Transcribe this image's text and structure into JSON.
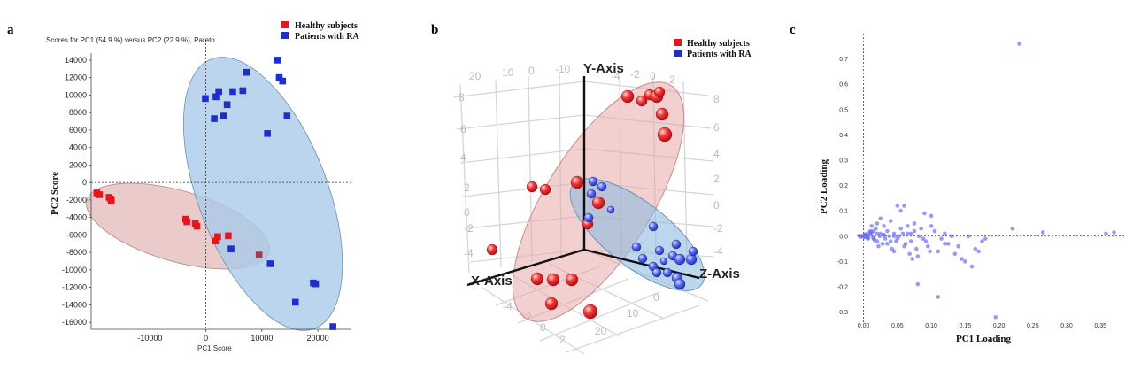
{
  "colors": {
    "healthy": "#e8161c",
    "ra": "#1d2fc8",
    "loading": "#6f6ff0",
    "healthy_ellipse": "#e4b8b8",
    "ra_ellipse": "#a9cbe8"
  },
  "chart_data": [
    {
      "panel": "a",
      "type": "scatter",
      "title": "Scores for PC1 (54.9 %) versus PC2 (22.9 %), Pareto",
      "xlabel": "PC1 Score",
      "ylabel": "PC2 Score",
      "xlim": [
        -20500,
        26000
      ],
      "ylim": [
        -16800,
        14800
      ],
      "xticks": [
        -10000,
        0,
        10000,
        20000
      ],
      "yticks": [
        -16000,
        -14000,
        -12000,
        -10000,
        -8000,
        -6000,
        -4000,
        -2000,
        0,
        2000,
        4000,
        6000,
        8000,
        10000,
        12000,
        14000
      ],
      "legend": [
        "Healthy subjects",
        "Patients with RA"
      ],
      "legend_position": "top-right",
      "series": [
        {
          "name": "Healthy subjects",
          "marker": "square",
          "color": "#e8161c",
          "x": [
            -19500,
            -19000,
            -17300,
            -17000,
            -16900,
            -3600,
            -3400,
            -1900,
            -1600,
            1700,
            2100,
            4000
          ],
          "y": [
            -1200,
            -1400,
            -1700,
            -1900,
            -2100,
            -4200,
            -4500,
            -4700,
            -5000,
            -6700,
            -6200,
            -6100
          ]
        },
        {
          "name": "Patients with RA",
          "marker": "square",
          "color": "#1d2fc8",
          "x": [
            -100,
            1800,
            2300,
            3100,
            3800,
            4800,
            6600,
            7300,
            1500,
            11000,
            12800,
            13100,
            13700,
            14500,
            4500,
            11500,
            9500,
            19200,
            19600,
            16000,
            22700
          ],
          "y": [
            9600,
            9800,
            10400,
            7600,
            8900,
            10400,
            10500,
            12600,
            7300,
            5600,
            14000,
            12000,
            11600,
            7600,
            -7600,
            -9300,
            -8300,
            -11500,
            -11600,
            -13700,
            -16500
          ]
        }
      ]
    },
    {
      "panel": "b",
      "type": "scatter",
      "title": "",
      "axes": [
        "X-Axis",
        "Y-Axis",
        "Z-Axis"
      ],
      "tick_labels_top": [
        "20",
        "10",
        "0",
        "-10"
      ],
      "tick_labels_top_right": [
        "-4",
        "-2",
        "0",
        "2"
      ],
      "tick_labels_left": [
        "8",
        "6",
        "4",
        "2",
        "0",
        "-2",
        "-4"
      ],
      "tick_labels_right": [
        "8",
        "6",
        "4",
        "2",
        "0",
        "-2",
        "-4"
      ],
      "tick_labels_bottom_left": [
        "-4",
        "-2",
        "0",
        "2"
      ],
      "tick_labels_bottom_right": [
        "0",
        "10",
        "20"
      ],
      "legend": [
        "Healthy subjects",
        "Patients with RA"
      ],
      "legend_position": "top-right",
      "series": [
        {
          "name": "Healthy subjects",
          "marker": "sphere",
          "color": "#e8161c",
          "count": 18
        },
        {
          "name": "Patients with RA",
          "marker": "sphere",
          "color": "#1d2fc8",
          "count": 20
        }
      ]
    },
    {
      "panel": "c",
      "type": "scatter",
      "title": "",
      "xlabel": "PC1 Loading",
      "ylabel": "PC2 Loading",
      "xlim": [
        -0.01,
        0.385
      ],
      "ylim": [
        -0.34,
        0.8
      ],
      "xticks": [
        "0.00",
        "0.05",
        "0.10",
        "0.15",
        "0.20",
        "0.25",
        "0.30",
        "0.35"
      ],
      "yticks": [
        "-0.3",
        "-0.2",
        "-0.1",
        "0.0",
        "0.1",
        "0.2",
        "0.3",
        "0.4",
        "0.5",
        "0.6",
        "0.7"
      ],
      "series": [
        {
          "name": "",
          "marker": "circle",
          "color": "#6f6ff0",
          "x": [
            0.23,
            0.37,
            0.358,
            0.265,
            0.22,
            0.11,
            0.12,
            0.1,
            0.09,
            0.08,
            0.075,
            0.07,
            0.065,
            0.06,
            0.055,
            0.05,
            0.045,
            0.04,
            0.035,
            0.03,
            0.025,
            0.02,
            0.018,
            0.015,
            0.012,
            0.01,
            0.008,
            0.006,
            0.004,
            0.002,
            0.001,
            0.0,
            -0.002,
            -0.004,
            -0.006,
            0.02,
            0.022,
            0.028,
            0.032,
            0.038,
            0.042,
            0.048,
            0.052,
            0.058,
            0.062,
            0.068,
            0.072,
            0.078,
            0.082,
            0.088,
            0.092,
            0.098,
            0.105,
            0.115,
            0.125,
            0.13,
            0.14,
            0.16,
            0.17,
            0.175,
            0.18,
            0.195,
            0.15,
            0.095,
            0.085,
            0.045,
            0.035,
            0.025,
            0.015,
            0.01,
            0.005,
            0.003,
            0.007,
            0.012,
            0.016,
            0.024,
            0.03,
            0.04,
            0.05,
            0.055,
            0.06,
            0.065,
            0.07,
            0.075,
            0.08,
            0.1,
            0.11,
            0.12,
            0.135,
            0.145,
            0.155,
            0.165,
            0.045,
            0.03,
            0.02,
            0.014,
            0.009,
            0.006,
            0.003,
            0.001
          ],
          "y": [
            0.76,
            0.015,
            0.01,
            0.015,
            0.03,
            -0.24,
            -0.03,
            0.08,
            0.09,
            -0.19,
            0.05,
            0.01,
            0.04,
            0.12,
            0.1,
            0.12,
            0.01,
            0.06,
            0.02,
            0.04,
            0.07,
            0.05,
            0.03,
            0.02,
            0.04,
            0.01,
            0.005,
            0.002,
            0.0,
            0.003,
            -0.002,
            0.0,
            0.001,
            -0.003,
            0.002,
            -0.02,
            -0.04,
            -0.03,
            -0.01,
            0.0,
            -0.05,
            -0.02,
            0.0,
            0.01,
            -0.03,
            -0.07,
            -0.09,
            -0.05,
            0.0,
            -0.01,
            -0.02,
            -0.06,
            0.02,
            -0.01,
            -0.03,
            0.0,
            -0.04,
            -0.12,
            -0.06,
            -0.02,
            -0.01,
            -0.32,
            -0.1,
            -0.04,
            0.03,
            -0.06,
            -0.03,
            0.01,
            -0.01,
            0.02,
            -0.005,
            0.008,
            -0.008,
            0.015,
            -0.015,
            0.0,
            0.005,
            -0.02,
            -0.01,
            0.03,
            -0.04,
            0.01,
            -0.02,
            0.02,
            -0.08,
            0.04,
            -0.06,
            0.01,
            -0.07,
            -0.09,
            0.0,
            -0.05,
            0.0,
            0.005,
            0.01,
            -0.005,
            0.015,
            -0.01,
            0.004,
            -0.004
          ]
        }
      ]
    }
  ]
}
